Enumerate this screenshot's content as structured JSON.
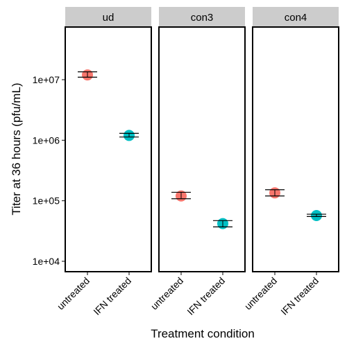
{
  "chart_data": {
    "type": "scatter",
    "facets": [
      "ud",
      "con3",
      "con4"
    ],
    "categories": [
      "untreated",
      "IFN treated"
    ],
    "xlabel": "Treatment condition",
    "ylabel": "Titer at 36 hours (pfu/mL)",
    "y_scale": "log10",
    "y_ticks": [
      10000,
      100000,
      1000000,
      10000000
    ],
    "y_tick_labels": [
      "1e+04",
      "1e+05",
      "1e+06",
      "1e+07"
    ],
    "ylim": [
      6500,
      80000000
    ],
    "grid": false,
    "legend": "none",
    "colors": {
      "untreated": "#F8766D",
      "IFN treated": "#00BFC4",
      "strip": "#CCCCCC",
      "errorbar": "#000000",
      "panel_border": "#000000"
    },
    "points": [
      {
        "facet": "ud",
        "category": "untreated",
        "mean": 12000000,
        "low": 11000000,
        "high": 13500000
      },
      {
        "facet": "ud",
        "category": "IFN treated",
        "mean": 1200000,
        "low": 1130000,
        "high": 1300000
      },
      {
        "facet": "con3",
        "category": "untreated",
        "mean": 120000,
        "low": 108000,
        "high": 138000
      },
      {
        "facet": "con3",
        "category": "IFN treated",
        "mean": 42000,
        "low": 37000,
        "high": 47000
      },
      {
        "facet": "con4",
        "category": "untreated",
        "mean": 135000,
        "low": 120000,
        "high": 152000
      },
      {
        "facet": "con4",
        "category": "IFN treated",
        "mean": 57000,
        "low": 55000,
        "high": 60000
      }
    ]
  }
}
